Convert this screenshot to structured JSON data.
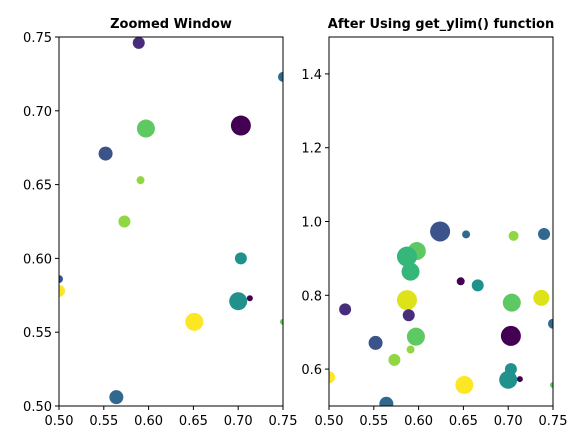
{
  "chart_data": [
    {
      "type": "scatter",
      "title": "Zoomed Window",
      "xlabel": "",
      "ylabel": "",
      "xlim": [
        0.5,
        0.75
      ],
      "ylim": [
        0.5,
        0.75
      ],
      "xticks": [
        "0.50",
        "0.55",
        "0.60",
        "0.65",
        "0.70",
        "0.75"
      ],
      "yticks": [
        "0.50",
        "0.55",
        "0.60",
        "0.65",
        "0.70",
        "0.75"
      ],
      "grid": false,
      "points": [
        {
          "x": 0.589,
          "y": 0.746,
          "size": 6,
          "color": "#472d7b"
        },
        {
          "x": 0.75,
          "y": 0.723,
          "size": 5,
          "color": "#31688e"
        },
        {
          "x": 0.703,
          "y": 0.69,
          "size": 10,
          "color": "#440154"
        },
        {
          "x": 0.597,
          "y": 0.688,
          "size": 9,
          "color": "#5ec962"
        },
        {
          "x": 0.552,
          "y": 0.671,
          "size": 7,
          "color": "#3b528b"
        },
        {
          "x": 0.591,
          "y": 0.653,
          "size": 4,
          "color": "#90d743"
        },
        {
          "x": 0.573,
          "y": 0.625,
          "size": 6,
          "color": "#90d743"
        },
        {
          "x": 0.703,
          "y": 0.6,
          "size": 6,
          "color": "#21918c"
        },
        {
          "x": 0.5,
          "y": 0.586,
          "size": 4,
          "color": "#3b528b"
        },
        {
          "x": 0.5,
          "y": 0.578,
          "size": 6,
          "color": "#fde725"
        },
        {
          "x": 0.713,
          "y": 0.573,
          "size": 3,
          "color": "#440154"
        },
        {
          "x": 0.7,
          "y": 0.571,
          "size": 9,
          "color": "#21918c"
        },
        {
          "x": 0.651,
          "y": 0.557,
          "size": 9,
          "color": "#fde725"
        },
        {
          "x": 0.75,
          "y": 0.557,
          "size": 3,
          "color": "#5ec962"
        },
        {
          "x": 0.564,
          "y": 0.506,
          "size": 7,
          "color": "#31688e"
        }
      ]
    },
    {
      "type": "scatter",
      "title": "After Using get_ylim() function",
      "xlabel": "",
      "ylabel": "",
      "xlim": [
        0.5,
        0.75
      ],
      "ylim": [
        0.5,
        1.5
      ],
      "xticks": [
        "0.50",
        "0.55",
        "0.60",
        "0.65",
        "0.70",
        "0.75"
      ],
      "yticks": [
        "0.6",
        "0.8",
        "1.0",
        "1.2",
        "1.4"
      ],
      "grid": false,
      "points": [
        {
          "x": 0.624,
          "y": 0.973,
          "size": 10,
          "color": "#3b528b"
        },
        {
          "x": 0.653,
          "y": 0.965,
          "size": 4,
          "color": "#31688e"
        },
        {
          "x": 0.74,
          "y": 0.966,
          "size": 6,
          "color": "#31688e"
        },
        {
          "x": 0.706,
          "y": 0.961,
          "size": 5,
          "color": "#90d743"
        },
        {
          "x": 0.598,
          "y": 0.92,
          "size": 9,
          "color": "#5ec962"
        },
        {
          "x": 0.587,
          "y": 0.905,
          "size": 10,
          "color": "#35b779"
        },
        {
          "x": 0.591,
          "y": 0.864,
          "size": 9,
          "color": "#35b779"
        },
        {
          "x": 0.647,
          "y": 0.838,
          "size": 4,
          "color": "#440154"
        },
        {
          "x": 0.666,
          "y": 0.827,
          "size": 6,
          "color": "#21918c"
        },
        {
          "x": 0.737,
          "y": 0.793,
          "size": 8,
          "color": "#dde318"
        },
        {
          "x": 0.587,
          "y": 0.787,
          "size": 10,
          "color": "#dde318"
        },
        {
          "x": 0.704,
          "y": 0.78,
          "size": 9,
          "color": "#5ec962"
        },
        {
          "x": 0.518,
          "y": 0.762,
          "size": 6,
          "color": "#472d7b"
        },
        {
          "x": 0.589,
          "y": 0.746,
          "size": 6,
          "color": "#472d7b"
        },
        {
          "x": 0.75,
          "y": 0.723,
          "size": 5,
          "color": "#31688e"
        },
        {
          "x": 0.703,
          "y": 0.69,
          "size": 10,
          "color": "#440154"
        },
        {
          "x": 0.597,
          "y": 0.688,
          "size": 9,
          "color": "#5ec962"
        },
        {
          "x": 0.552,
          "y": 0.671,
          "size": 7,
          "color": "#3b528b"
        },
        {
          "x": 0.591,
          "y": 0.653,
          "size": 4,
          "color": "#90d743"
        },
        {
          "x": 0.573,
          "y": 0.625,
          "size": 6,
          "color": "#90d743"
        },
        {
          "x": 0.703,
          "y": 0.6,
          "size": 6,
          "color": "#21918c"
        },
        {
          "x": 0.5,
          "y": 0.578,
          "size": 6,
          "color": "#fde725"
        },
        {
          "x": 0.713,
          "y": 0.573,
          "size": 3,
          "color": "#440154"
        },
        {
          "x": 0.7,
          "y": 0.571,
          "size": 9,
          "color": "#21918c"
        },
        {
          "x": 0.651,
          "y": 0.557,
          "size": 9,
          "color": "#fde725"
        },
        {
          "x": 0.75,
          "y": 0.557,
          "size": 3,
          "color": "#5ec962"
        },
        {
          "x": 0.564,
          "y": 0.506,
          "size": 7,
          "color": "#31688e"
        }
      ]
    }
  ]
}
